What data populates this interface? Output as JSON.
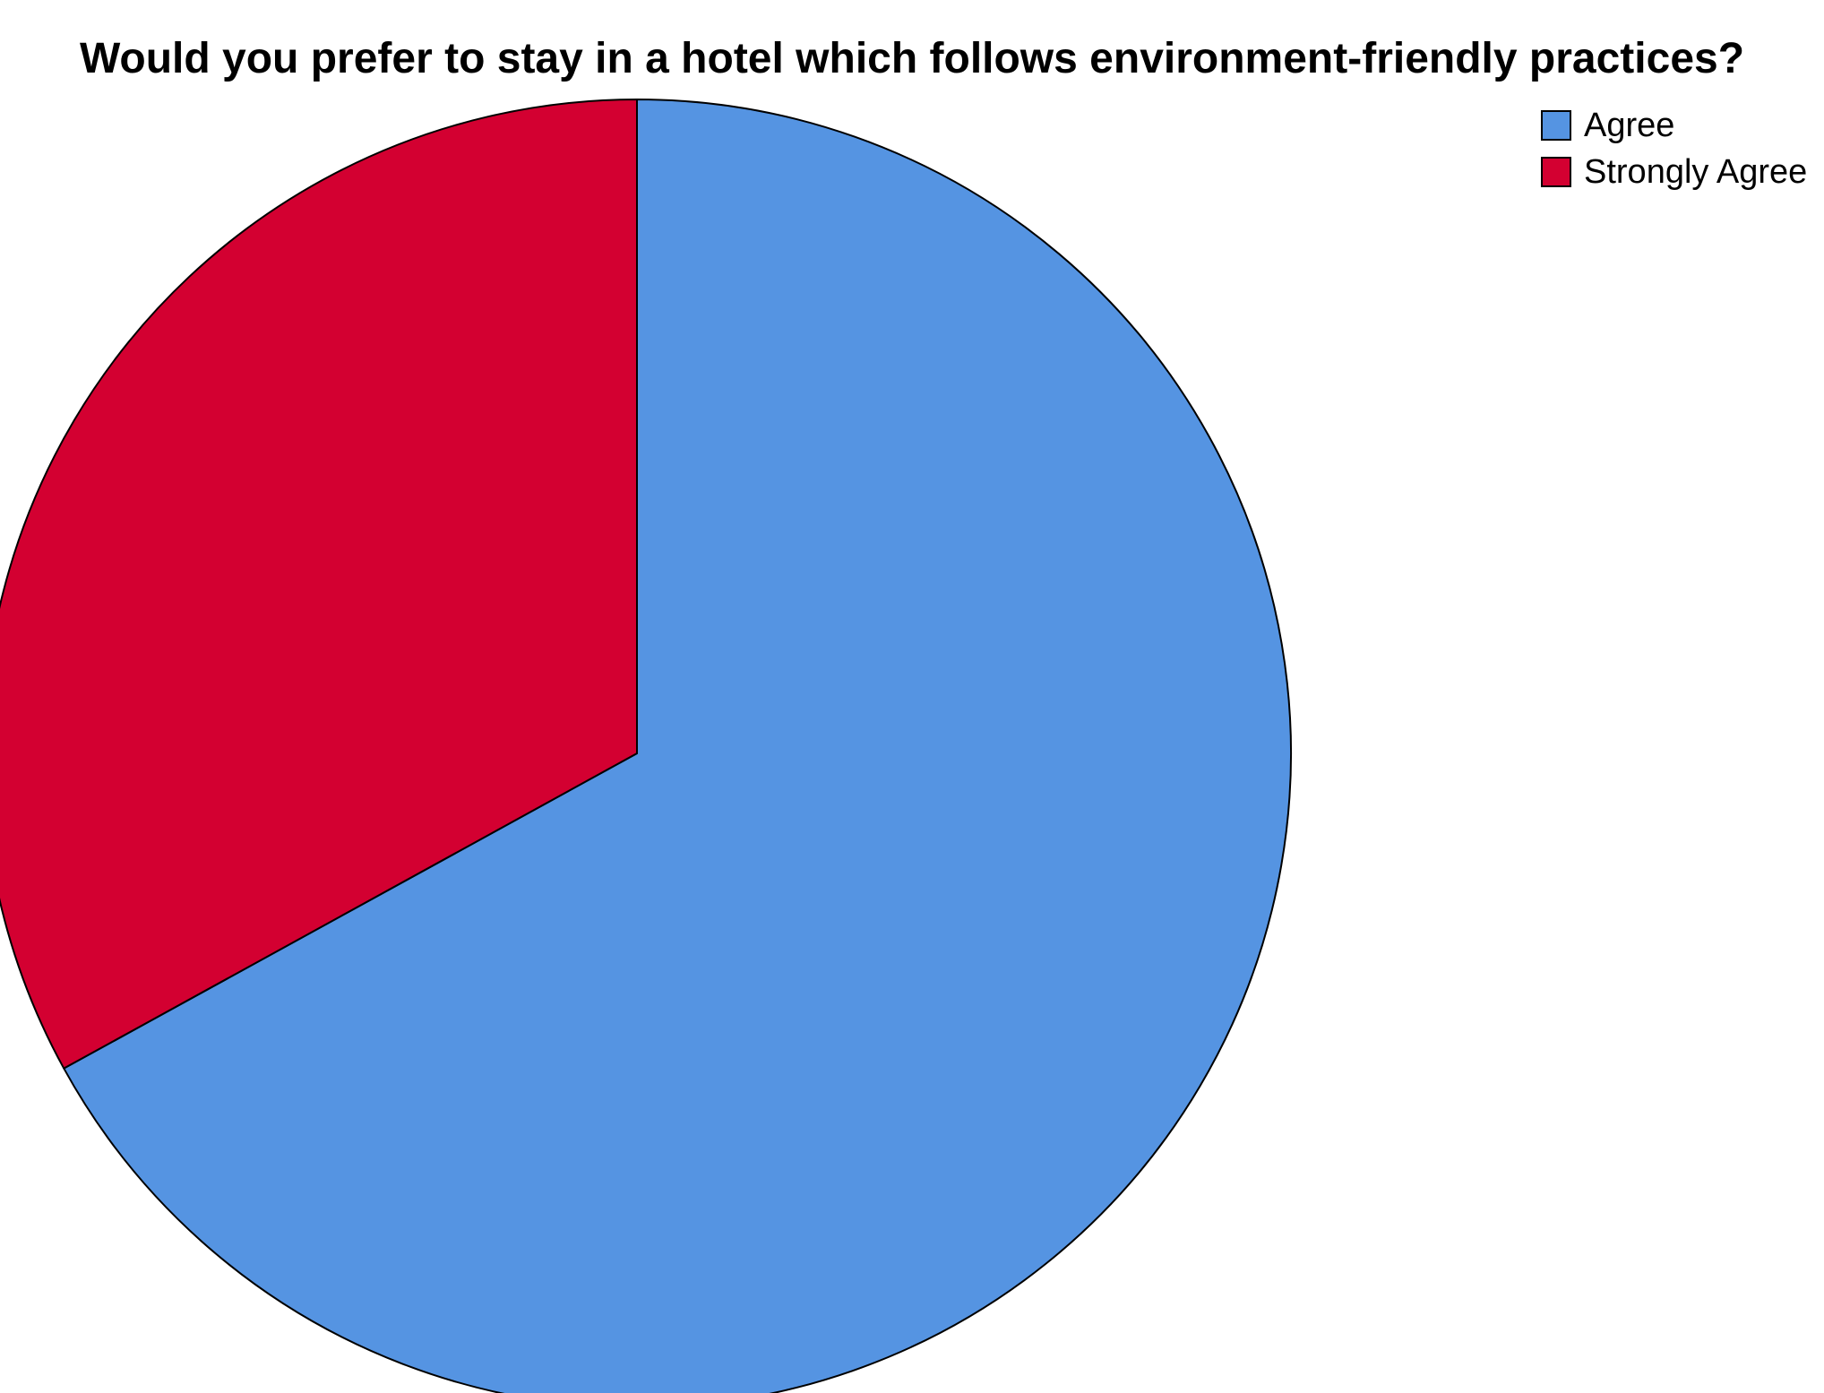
{
  "chart_data": {
    "type": "pie",
    "title": "Would you prefer to stay in a hotel which follows environment-friendly practices?",
    "categories": [
      "Agree",
      "Strongly Agree"
    ],
    "values": [
      67,
      33
    ],
    "colors": [
      "#5594E2",
      "#D30031"
    ],
    "start_angle_deg": 0,
    "direction": "clockwise",
    "legend_position": "top-right"
  }
}
